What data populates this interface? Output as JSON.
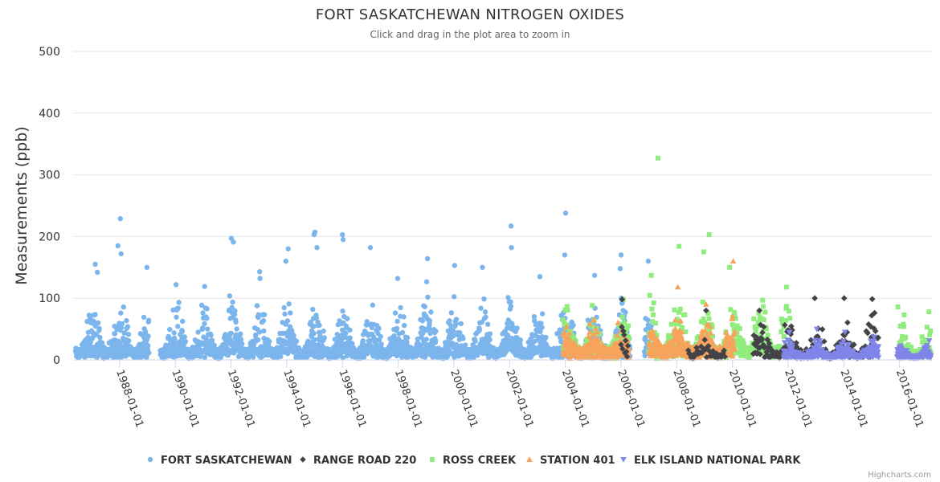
{
  "chart_data": {
    "type": "scatter",
    "title": "FORT SASKATCHEWAN NITROGEN OXIDES",
    "subtitle": "Click and drag in the plot area to zoom in",
    "ylabel": "Measurements (ppb)",
    "xlabel": "",
    "ylim": [
      0,
      500
    ],
    "yticks": [
      "0",
      "100",
      "200",
      "300",
      "400",
      "500"
    ],
    "xlim": [
      "1986-05-01",
      "2017-03-01"
    ],
    "xticks": [
      "1988-01-01",
      "1990-01-01",
      "1992-01-01",
      "1994-01-01",
      "1996-01-01",
      "1998-01-01",
      "2000-01-01",
      "2002-01-01",
      "2004-01-01",
      "2006-01-01",
      "2008-01-01",
      "2010-01-01",
      "2012-01-01",
      "2014-01-01",
      "2016-01-01"
    ],
    "grid": true,
    "legend_position": "bottom",
    "series": [
      {
        "name": "FORT SASKATCHEWAN",
        "color": "#7cb5ec",
        "marker": "circle",
        "notable_points": [
          {
            "date": "1987-02-15",
            "value": 155
          },
          {
            "date": "1987-03-15",
            "value": 142
          },
          {
            "date": "1988-01-10",
            "value": 229
          },
          {
            "date": "1987-12-10",
            "value": 185
          },
          {
            "date": "1988-01-20",
            "value": 172
          },
          {
            "date": "1988-12-25",
            "value": 150
          },
          {
            "date": "1990-01-10",
            "value": 122
          },
          {
            "date": "1991-01-20",
            "value": 119
          },
          {
            "date": "1992-01-05",
            "value": 197
          },
          {
            "date": "1992-02-01",
            "value": 191
          },
          {
            "date": "1993-01-10",
            "value": 143
          },
          {
            "date": "1993-01-15",
            "value": 132
          },
          {
            "date": "1993-12-20",
            "value": 160
          },
          {
            "date": "1994-01-20",
            "value": 180
          },
          {
            "date": "1995-01-05",
            "value": 207
          },
          {
            "date": "1994-12-25",
            "value": 203
          },
          {
            "date": "1995-02-01",
            "value": 182
          },
          {
            "date": "1996-01-01",
            "value": 203
          },
          {
            "date": "1996-01-10",
            "value": 195
          },
          {
            "date": "1997-01-01",
            "value": 182
          },
          {
            "date": "1997-12-25",
            "value": 132
          },
          {
            "date": "1999-01-20",
            "value": 164
          },
          {
            "date": "2000-01-10",
            "value": 153
          },
          {
            "date": "2001-01-10",
            "value": 150
          },
          {
            "date": "2002-01-20",
            "value": 217
          },
          {
            "date": "2002-01-25",
            "value": 182
          },
          {
            "date": "2003-02-01",
            "value": 135
          },
          {
            "date": "2004-01-05",
            "value": 238
          },
          {
            "date": "2003-12-25",
            "value": 170
          },
          {
            "date": "2005-01-20",
            "value": 137
          },
          {
            "date": "2006-01-01",
            "value": 170
          },
          {
            "date": "2005-12-20",
            "value": 148
          },
          {
            "date": "2006-12-25",
            "value": 160
          }
        ]
      },
      {
        "name": "RANGE ROAD 220",
        "color": "#434348",
        "marker": "diamond",
        "notable_points": [
          {
            "date": "2006-01-15",
            "value": 98
          },
          {
            "date": "2009-01-20",
            "value": 80
          },
          {
            "date": "2010-12-20",
            "value": 80
          },
          {
            "date": "2012-12-15",
            "value": 100
          },
          {
            "date": "2014-01-05",
            "value": 100
          },
          {
            "date": "2015-01-01",
            "value": 72
          }
        ]
      },
      {
        "name": "ROSS CREEK",
        "color": "#90ed7d",
        "marker": "square",
        "notable_points": [
          {
            "date": "2007-05-01",
            "value": 327
          },
          {
            "date": "2008-02-01",
            "value": 184
          },
          {
            "date": "2009-03-01",
            "value": 203
          },
          {
            "date": "2008-12-20",
            "value": 175
          },
          {
            "date": "2009-11-25",
            "value": 150
          },
          {
            "date": "2007-02-01",
            "value": 137
          },
          {
            "date": "2011-12-10",
            "value": 118
          },
          {
            "date": "2015-12-10",
            "value": 86
          }
        ]
      },
      {
        "name": "STATION 401",
        "color": "#f7a35c",
        "marker": "triangle",
        "notable_points": [
          {
            "date": "2010-01-10",
            "value": 160
          },
          {
            "date": "2008-01-15",
            "value": 118
          },
          {
            "date": "2009-01-20",
            "value": 90
          },
          {
            "date": "2005-01-10",
            "value": 65
          }
        ]
      },
      {
        "name": "ELK ISLAND NATIONAL PARK",
        "color": "#8085e9",
        "marker": "triangle-down",
        "notable_points": [
          {
            "date": "2013-01-10",
            "value": 50
          },
          {
            "date": "2014-01-15",
            "value": 45
          },
          {
            "date": "2016-01-10",
            "value": 20
          }
        ]
      }
    ],
    "gaps": [
      "1989-01-20 to 1989-06-15",
      "2006-05-01 to 2006-11-01",
      "2015-04-01 to 2015-10-15"
    ]
  },
  "credits": "Highcharts.com"
}
